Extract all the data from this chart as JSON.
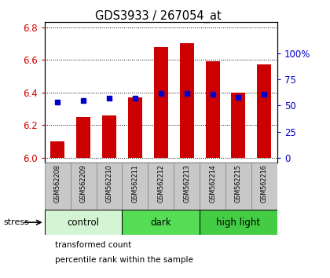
{
  "title": "GDS3933 / 267054_at",
  "samples": [
    "GSM562208",
    "GSM562209",
    "GSM562210",
    "GSM562211",
    "GSM562212",
    "GSM562213",
    "GSM562214",
    "GSM562215",
    "GSM562216"
  ],
  "bar_values": [
    6.1,
    6.25,
    6.26,
    6.37,
    6.68,
    6.7,
    6.59,
    6.4,
    6.57
  ],
  "bar_base": 6.0,
  "percentile_values": [
    53,
    55,
    57,
    57,
    62,
    62,
    61,
    58,
    61
  ],
  "ylim_left": [
    5.97,
    6.83
  ],
  "ylim_right": [
    -4.8,
    130
  ],
  "yticks_left": [
    6.0,
    6.2,
    6.4,
    6.6,
    6.8
  ],
  "yticks_right": [
    0,
    25,
    50,
    75,
    100
  ],
  "ytick_labels_right": [
    "0",
    "25",
    "50",
    "75",
    "100%"
  ],
  "bar_color": "#cc0000",
  "dot_color": "#0000cc",
  "groups": [
    {
      "label": "control",
      "indices": [
        0,
        1,
        2
      ],
      "color": "#d4f5d4"
    },
    {
      "label": "dark",
      "indices": [
        3,
        4,
        5
      ],
      "color": "#55dd55"
    },
    {
      "label": "high light",
      "indices": [
        6,
        7,
        8
      ],
      "color": "#44cc44"
    }
  ],
  "stress_label": "stress",
  "legend_items": [
    {
      "label": "transformed count",
      "color": "#cc0000"
    },
    {
      "label": "percentile rank within the sample",
      "color": "#0000cc"
    }
  ],
  "bar_width": 0.55,
  "left_tick_color": "#cc0000",
  "right_tick_color": "#0000cc",
  "label_bg_color": "#c8c8c8",
  "label_border_color": "#888888"
}
